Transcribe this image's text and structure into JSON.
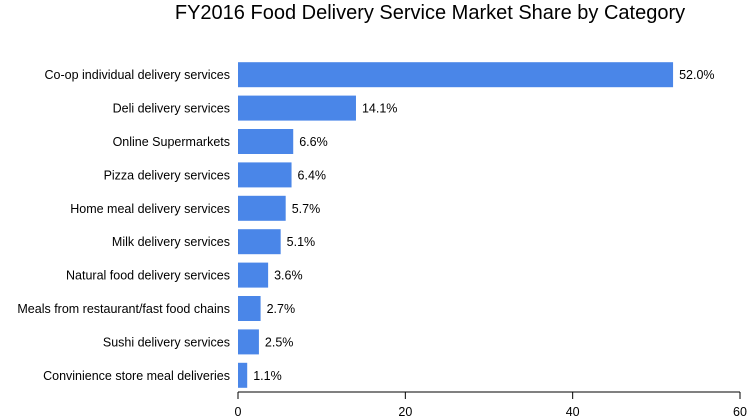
{
  "chart_data": {
    "type": "bar",
    "orientation": "horizontal",
    "title": "FY2016 Food Delivery Service Market Share by Category",
    "categories": [
      "Co-op individual delivery services",
      "Deli delivery services",
      "Online Supermarkets",
      "Pizza delivery services",
      "Home meal delivery services",
      "Milk delivery services",
      "Natural food delivery services",
      "Meals from restaurant/fast food chains",
      "Sushi delivery services",
      "Convinience store meal deliveries"
    ],
    "values": [
      52.0,
      14.1,
      6.6,
      6.4,
      5.7,
      5.1,
      3.6,
      2.7,
      2.5,
      1.1
    ],
    "data_labels": [
      "52.0%",
      "14.1%",
      "6.6%",
      "6.4%",
      "5.7%",
      "5.1%",
      "3.6%",
      "2.7%",
      "2.5%",
      "1.1%"
    ],
    "xlim": [
      0,
      60
    ],
    "xticks": [
      0,
      20,
      40,
      60
    ],
    "xtick_labels": [
      "0",
      "20",
      "40",
      "60"
    ],
    "xlabel": "",
    "ylabel": "",
    "bar_color": "#4a86e8",
    "grid": false,
    "legend": "none"
  }
}
